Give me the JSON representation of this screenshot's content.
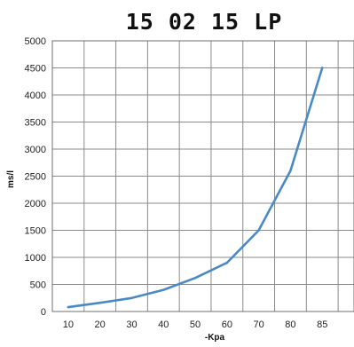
{
  "chart_data": {
    "type": "line",
    "title": "15 02 15 LP",
    "xlabel": "-Kpa",
    "ylabel": "ms/l",
    "x_ticks": [
      10,
      20,
      30,
      40,
      50,
      60,
      70,
      80,
      85
    ],
    "y_ticks": [
      0,
      500,
      1000,
      1500,
      2000,
      2500,
      3000,
      3500,
      4000,
      4500,
      5000
    ],
    "ylim": [
      0,
      5000
    ],
    "grid": true,
    "series": [
      {
        "color": "#4a8ac4",
        "values": [
          80,
          160,
          250,
          400,
          620,
          900,
          1500,
          2600,
          4500
        ]
      }
    ]
  }
}
